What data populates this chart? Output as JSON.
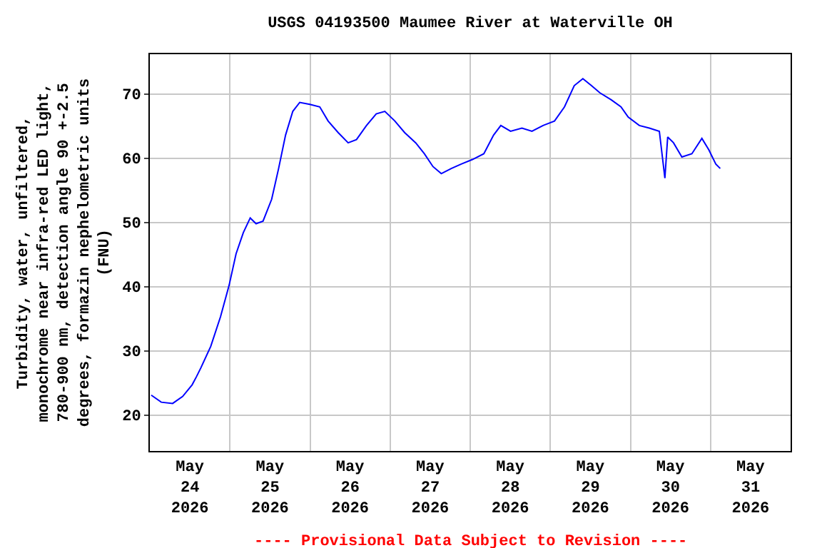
{
  "chart_data": {
    "type": "line",
    "title": "USGS 04193500 Maumee River at Waterville OH",
    "ylabel": "Turbidity, water, unfiltered,\nmonochrome near infra-red LED light,\n780-900 nm, detection angle 90 +-2.5\ndegrees, formazin nephelometric units\n(FNU)",
    "annotations": [
      "---- Provisional Data Subject to Revision ----"
    ],
    "x": [
      "2026-05-24T00:25",
      "2026-05-24T03:25",
      "2026-05-24T06:50",
      "2026-05-24T09:50",
      "2026-05-24T12:40",
      "2026-05-24T14:00",
      "2026-05-24T15:15",
      "2026-05-24T18:15",
      "2026-05-24T21:10",
      "2026-05-24T23:45",
      "2026-05-25T01:50",
      "2026-05-25T04:00",
      "2026-05-25T06:05",
      "2026-05-25T07:50",
      "2026-05-25T09:55",
      "2026-05-25T12:30",
      "2026-05-25T14:35",
      "2026-05-25T16:40",
      "2026-05-25T18:50",
      "2026-05-25T20:55",
      "2026-05-25T23:55",
      "2026-05-26T02:55",
      "2026-05-26T05:25",
      "2026-05-26T08:25",
      "2026-05-26T11:25",
      "2026-05-26T13:55",
      "2026-05-26T16:55",
      "2026-05-26T19:50",
      "2026-05-26T22:25",
      "2026-05-27T01:25",
      "2026-05-27T04:20",
      "2026-05-27T07:40",
      "2026-05-27T10:15",
      "2026-05-27T12:50",
      "2026-05-27T15:20",
      "2026-05-27T18:20",
      "2026-05-27T21:20",
      "2026-05-28T00:40",
      "2026-05-28T04:05",
      "2026-05-28T07:00",
      "2026-05-28T09:10",
      "2026-05-28T12:05",
      "2026-05-28T15:30",
      "2026-05-28T18:30",
      "2026-05-28T21:50",
      "2026-05-29T01:15",
      "2026-05-29T04:15",
      "2026-05-29T07:10",
      "2026-05-29T09:45",
      "2026-05-29T12:20",
      "2026-05-29T14:50",
      "2026-05-29T18:15",
      "2026-05-29T21:10",
      "2026-05-29T23:20",
      "2026-05-30T02:40",
      "2026-05-30T05:40",
      "2026-05-30T08:40",
      "2026-05-30T10:20",
      "2026-05-30T11:10",
      "2026-05-30T12:55",
      "2026-05-30T15:25",
      "2026-05-30T18:25",
      "2026-05-30T21:25",
      "2026-05-30T23:30",
      "2026-05-31T01:35",
      "2026-05-31T02:55"
    ],
    "series": [
      {
        "color": "#0000ff",
        "values": [
          23.1,
          22.0,
          21.8,
          22.9,
          24.7,
          26,
          27.3,
          30.7,
          35.3,
          40.2,
          45.1,
          48.4,
          50.7,
          49.8,
          50.2,
          53.6,
          58.4,
          63.6,
          67.3,
          68.7,
          68.4,
          68,
          65.8,
          64,
          62.4,
          62.9,
          65.1,
          66.9,
          67.3,
          65.8,
          64,
          62.4,
          60.7,
          58.7,
          57.6,
          58.4,
          59.1,
          59.8,
          60.7,
          63.6,
          65.1,
          64.2,
          64.7,
          64.2,
          65.1,
          65.8,
          68,
          71.3,
          72.4,
          71.3,
          70.2,
          69.1,
          68,
          66.4,
          65.1,
          64.7,
          64.2,
          56.9,
          63.3,
          62.4,
          60.2,
          60.7,
          63.1,
          61.3,
          59.1,
          58.4
        ]
      }
    ],
    "xlim": [
      "2026-05-24T00:00",
      "2026-06-01T00:00"
    ],
    "xticks": [
      {
        "value": "2026-05-24T00:00",
        "label": null
      },
      {
        "value": "2026-05-24T12:00",
        "label": "May\n24\n2026"
      },
      {
        "value": "2026-05-25T00:00",
        "label": null
      },
      {
        "value": "2026-05-25T12:00",
        "label": "May\n25\n2026"
      },
      {
        "value": "2026-05-26T00:00",
        "label": null
      },
      {
        "value": "2026-05-26T12:00",
        "label": "May\n26\n2026"
      },
      {
        "value": "2026-05-27T00:00",
        "label": null
      },
      {
        "value": "2026-05-27T12:00",
        "label": "May\n27\n2026"
      },
      {
        "value": "2026-05-28T00:00",
        "label": null
      },
      {
        "value": "2026-05-28T12:00",
        "label": "May\n28\n2026"
      },
      {
        "value": "2026-05-29T00:00",
        "label": null
      },
      {
        "value": "2026-05-29T12:00",
        "label": "May\n29\n2026"
      },
      {
        "value": "2026-05-30T00:00",
        "label": null
      },
      {
        "value": "2026-05-30T12:00",
        "label": "May\n30\n2026"
      },
      {
        "value": "2026-05-31T00:00",
        "label": null
      },
      {
        "value": "2026-05-31T12:00",
        "label": "May\n31\n2026"
      },
      {
        "value": "2026-06-01T00:00",
        "label": null
      }
    ],
    "ylim": [
      14.4,
      76.2
    ],
    "yticks": [
      20,
      30,
      40,
      50,
      60,
      70
    ],
    "grid": true,
    "marker": "none",
    "line_style": "solid"
  }
}
